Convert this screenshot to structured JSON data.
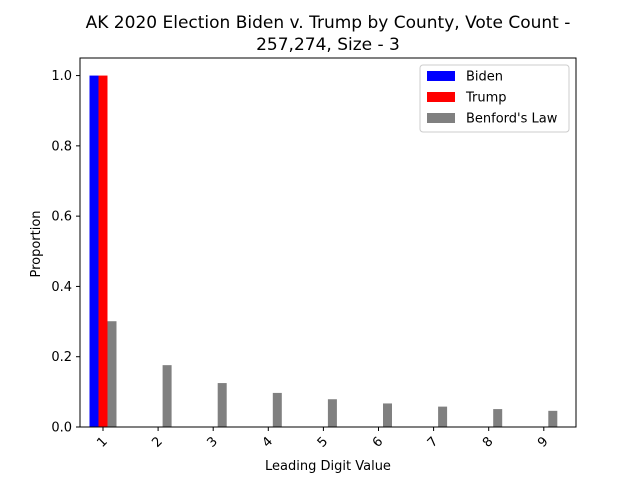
{
  "chart_data": {
    "type": "bar",
    "title_line1": "AK 2020 Election Biden v. Trump by County, Vote Count -",
    "title_line2": "257,274, Size - 3",
    "xlabel": "Leading Digit Value",
    "ylabel": "Proportion",
    "categories": [
      "1",
      "2",
      "3",
      "4",
      "5",
      "6",
      "7",
      "8",
      "9"
    ],
    "ylim": [
      0,
      1.05
    ],
    "yticks": [
      "0.0",
      "0.2",
      "0.4",
      "0.6",
      "0.8",
      "1.0"
    ],
    "legend_position": "top-right",
    "grid": false,
    "series": [
      {
        "name": "Biden",
        "color": "#0000ff",
        "values": [
          1.0,
          0,
          0,
          0,
          0,
          0,
          0,
          0,
          0
        ]
      },
      {
        "name": "Trump",
        "color": "#ff0000",
        "values": [
          1.0,
          0,
          0,
          0,
          0,
          0,
          0,
          0,
          0
        ]
      },
      {
        "name": "Benford's Law",
        "color": "#808080",
        "values": [
          0.301,
          0.176,
          0.125,
          0.097,
          0.079,
          0.067,
          0.058,
          0.051,
          0.046
        ]
      }
    ]
  }
}
